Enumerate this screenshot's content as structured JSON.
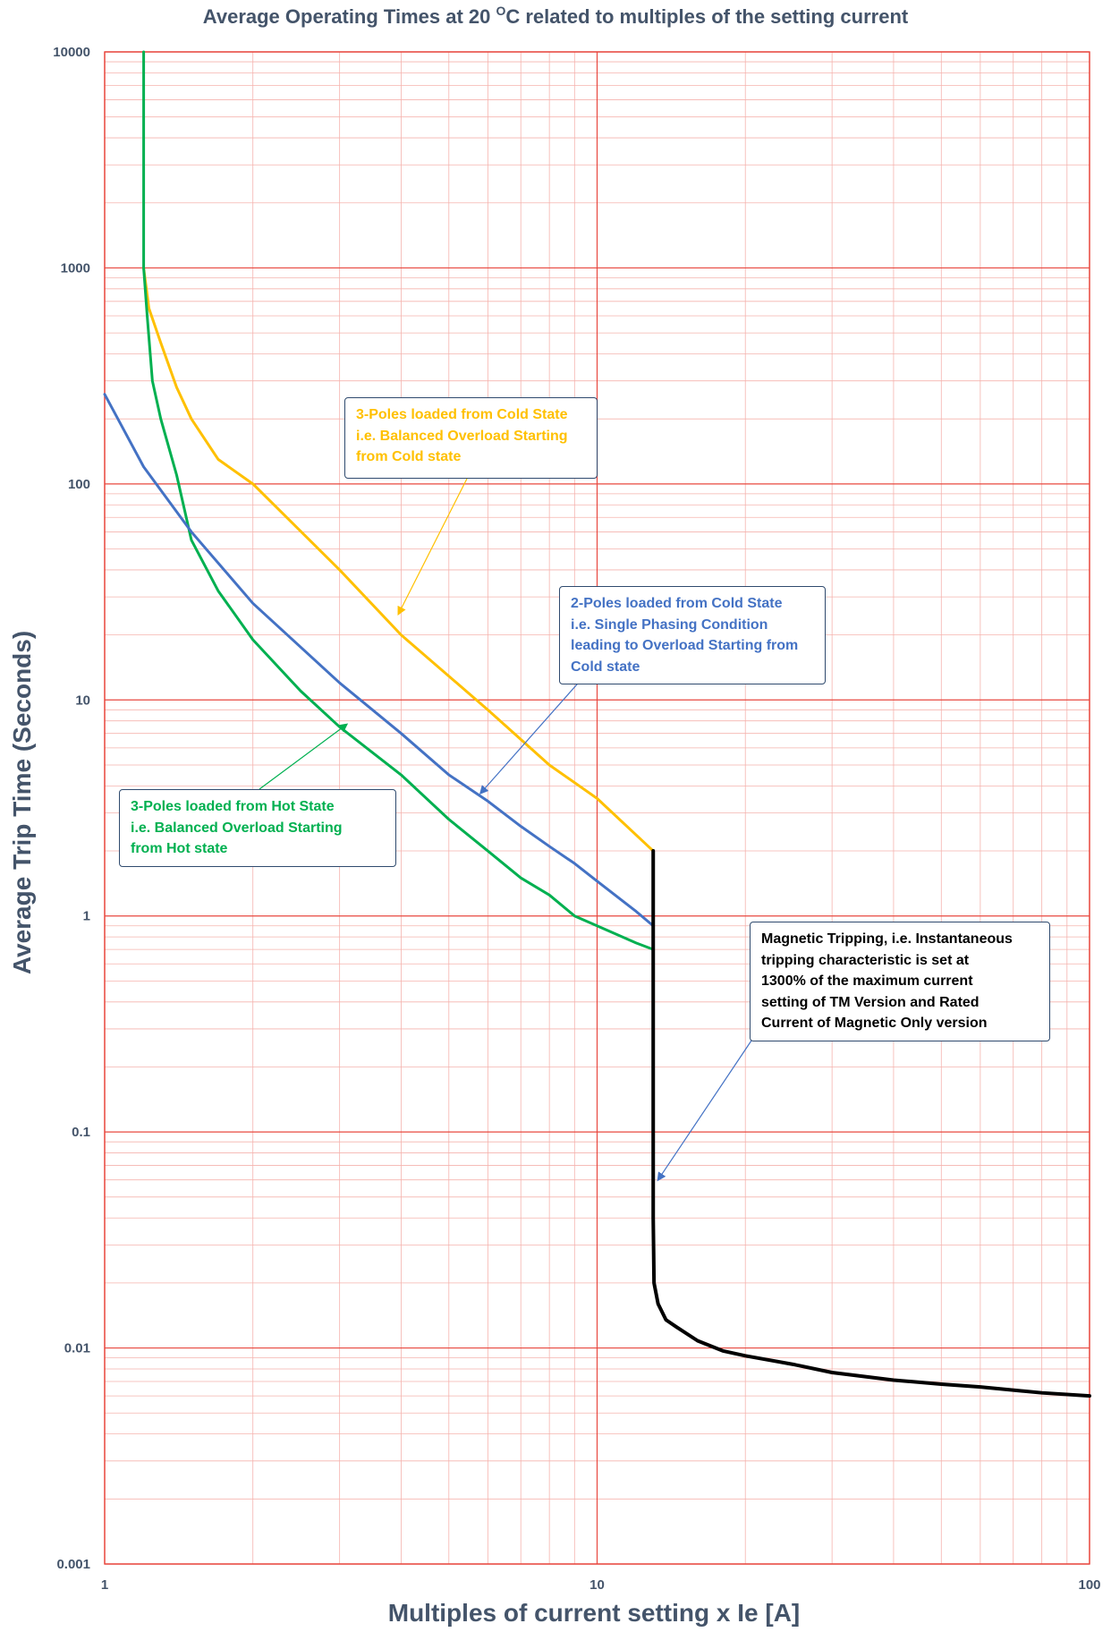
{
  "chart_data": {
    "type": "line",
    "title": "Average Operating Times at 20 OC related to multiples of the setting current",
    "title_parts": {
      "before": "Average Operating Times at 20 ",
      "superscript": "O",
      "after": "C related to multiples of the setting current"
    },
    "xlabel": "Multiples of current setting x Ie [A]",
    "ylabel": "Average Trip Time (Seconds)",
    "x_scale": "log",
    "y_scale": "log",
    "xlim": [
      1,
      100
    ],
    "ylim": [
      0.001,
      10000
    ],
    "x_ticks": [
      {
        "value": 1,
        "label": "1"
      },
      {
        "value": 10,
        "label": "10"
      },
      {
        "value": 100,
        "label": "100"
      }
    ],
    "y_ticks": [
      {
        "value": 10000,
        "label": "10000"
      },
      {
        "value": 1000,
        "label": "1000"
      },
      {
        "value": 100,
        "label": "100"
      },
      {
        "value": 10,
        "label": "10"
      },
      {
        "value": 1,
        "label": "1"
      },
      {
        "value": 0.1,
        "label": "0.1"
      },
      {
        "value": 0.01,
        "label": "0.01"
      },
      {
        "value": 0.001,
        "label": "0.001"
      }
    ],
    "grid": true,
    "grid_color_major": "#e8483f",
    "grid_color_minor": "#f5b3ae",
    "series": [
      {
        "color": "#ffc000",
        "points": [
          [
            1.2,
            1000
          ],
          [
            1.23,
            650
          ],
          [
            1.3,
            450
          ],
          [
            1.4,
            280
          ],
          [
            1.5,
            200
          ],
          [
            1.7,
            130
          ],
          [
            2,
            100
          ],
          [
            3,
            40
          ],
          [
            4,
            20
          ],
          [
            6,
            9
          ],
          [
            8,
            5
          ],
          [
            10,
            3.5
          ],
          [
            13,
            2
          ]
        ]
      },
      {
        "color": "#00b050",
        "points": [
          [
            1.2,
            10000
          ],
          [
            1.2,
            1000
          ],
          [
            1.22,
            600
          ],
          [
            1.25,
            300
          ],
          [
            1.3,
            200
          ],
          [
            1.4,
            110
          ],
          [
            1.5,
            55
          ],
          [
            1.7,
            32
          ],
          [
            2,
            19
          ],
          [
            2.5,
            11
          ],
          [
            3,
            7.5
          ],
          [
            4,
            4.5
          ],
          [
            5,
            2.8
          ],
          [
            6,
            2
          ],
          [
            7,
            1.5
          ],
          [
            8,
            1.25
          ],
          [
            9,
            1.0
          ],
          [
            10,
            0.9
          ],
          [
            12,
            0.75
          ],
          [
            13,
            0.7
          ]
        ]
      },
      {
        "color": "#4472c4",
        "points": [
          [
            1,
            260
          ],
          [
            1.2,
            120
          ],
          [
            1.5,
            60
          ],
          [
            2,
            28
          ],
          [
            3,
            12
          ],
          [
            4,
            7
          ],
          [
            5,
            4.5
          ],
          [
            6,
            3.4
          ],
          [
            7,
            2.6
          ],
          [
            8,
            2.1
          ],
          [
            9,
            1.75
          ],
          [
            10,
            1.45
          ],
          [
            12,
            1.05
          ],
          [
            13,
            0.9
          ]
        ]
      },
      {
        "color": "#000000",
        "points": [
          [
            13,
            2
          ],
          [
            13,
            1
          ],
          [
            13,
            0.1
          ],
          [
            13,
            0.04
          ],
          [
            13.05,
            0.02
          ],
          [
            13.3,
            0.016
          ],
          [
            13.8,
            0.0135
          ],
          [
            14.5,
            0.0125
          ],
          [
            16,
            0.0108
          ],
          [
            18,
            0.0097
          ],
          [
            20,
            0.0092
          ],
          [
            25,
            0.0084
          ],
          [
            30,
            0.0077
          ],
          [
            40,
            0.0071
          ],
          [
            50,
            0.0068
          ],
          [
            60,
            0.0066
          ],
          [
            80,
            0.0062
          ],
          [
            100,
            0.006
          ]
        ]
      }
    ],
    "annotations": [
      {
        "id": "cold3",
        "color": "#ffc000",
        "lines": [
          "3-Poles loaded from Cold State",
          "i.e. Balanced Overload Starting",
          "from Cold state"
        ],
        "arrow_to": [
          3.95,
          25
        ]
      },
      {
        "id": "cold2",
        "color": "#4472c4",
        "lines": [
          "2-Poles loaded from Cold State",
          "i.e. Single Phasing Condition",
          "leading to Overload Starting from",
          "Cold state"
        ],
        "arrow_to": [
          5.8,
          3.7
        ]
      },
      {
        "id": "hot3",
        "color": "#00b050",
        "lines": [
          "3-Poles loaded from Hot State",
          "i.e. Balanced Overload Starting",
          "from Hot state"
        ],
        "arrow_to": [
          3.1,
          7.7
        ]
      },
      {
        "id": "magnetic",
        "color": "#000000",
        "lines": [
          "Magnetic Tripping, i.e. Instantaneous",
          "tripping characteristic is set at",
          "1300% of the maximum current",
          "setting of TM Version and Rated",
          "Current of Magnetic Only version"
        ],
        "arrow_to": [
          13.3,
          0.06
        ]
      }
    ]
  }
}
